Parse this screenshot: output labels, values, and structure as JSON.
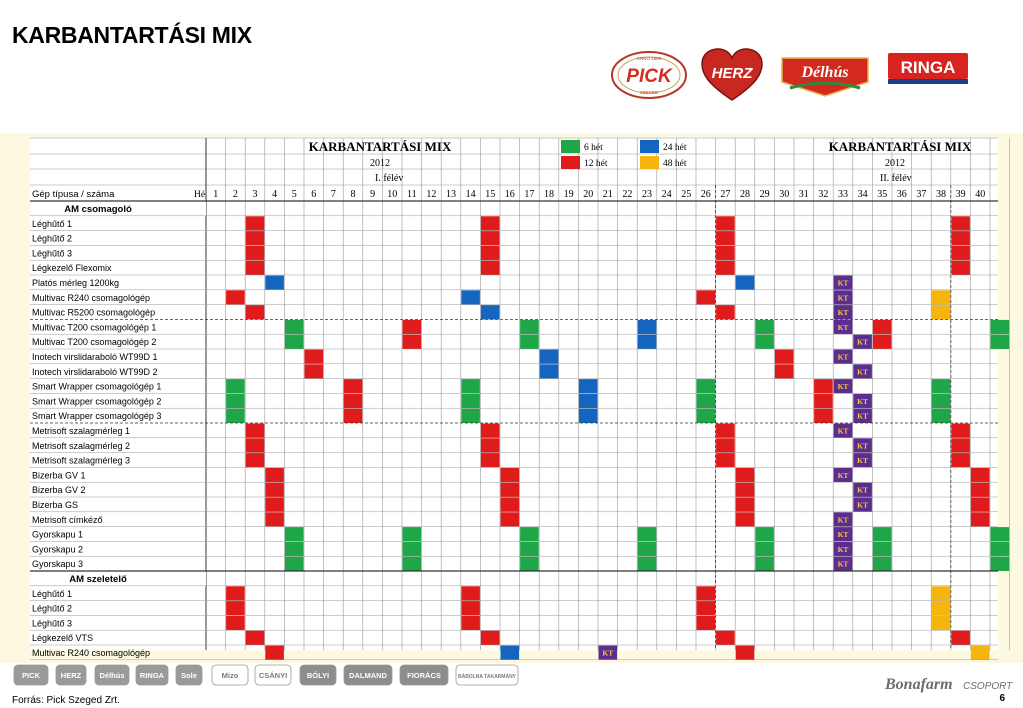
{
  "slide": {
    "title": "KARBANTARTÁSI MIX",
    "source": "Forrás: Pick Szeged Zrt.",
    "page_number": "6"
  },
  "brands": {
    "header": [
      "PICK",
      "HERZ",
      "Délhús",
      "RINGA"
    ],
    "pick_ring_top": "ANNO 1869",
    "pick_ring_bottom": "SZEGED",
    "footer": [
      "PICK",
      "HERZ",
      "Délhús",
      "RINGA",
      "Sole",
      "Mizo",
      "CSÁNYI",
      "BÓLYI",
      "DALMAND",
      "FIORÁCS",
      "BÁBOLNA TAKARMÁNY"
    ],
    "group": "Bonafarm",
    "group_suffix": "CSOPORT"
  },
  "sheet": {
    "title": "KARBANTARTÁSI MIX",
    "year": "2012",
    "half1": "I. félév",
    "half2": "II. félév",
    "header_machine": "Gép típusa / száma",
    "header_week": "Hé",
    "kt_label": "KT",
    "legend": [
      {
        "label": "6 hét",
        "color": "#1fa649"
      },
      {
        "label": "24 hét",
        "color": "#1565c0"
      },
      {
        "label": "12 hét",
        "color": "#e01b1b"
      },
      {
        "label": "48 hét",
        "color": "#f5b50d"
      }
    ],
    "colors": {
      "G": "#1fa649",
      "R": "#e01b1b",
      "B": "#1565c0",
      "Y": "#f5b50d",
      "K": "#5b2d8e"
    },
    "weeks": [
      1,
      2,
      3,
      4,
      5,
      6,
      7,
      8,
      9,
      10,
      11,
      12,
      13,
      14,
      15,
      16,
      17,
      18,
      19,
      20,
      21,
      22,
      23,
      24,
      25,
      26,
      27,
      28,
      29,
      30,
      31,
      32,
      33,
      34,
      35,
      36,
      37,
      38,
      39,
      40
    ],
    "rows": [
      {
        "label": "AM csomagoló",
        "section": true,
        "cells": {}
      },
      {
        "label": "Léghűtő 1",
        "cells": {
          "3": "R",
          "15": "R",
          "27": "R",
          "39": "R"
        }
      },
      {
        "label": "Léghűtő 2",
        "cells": {
          "3": "R",
          "15": "R",
          "27": "R",
          "39": "R"
        }
      },
      {
        "label": "Léghűtő 3",
        "cells": {
          "3": "R",
          "15": "R",
          "27": "R",
          "39": "R"
        }
      },
      {
        "label": "Légkezelő Flexomix",
        "cells": {
          "3": "R",
          "15": "R",
          "27": "R",
          "39": "R"
        }
      },
      {
        "label": "Platós mérleg 1200kg",
        "cells": {
          "4": "B",
          "28": "B",
          "33": "K"
        }
      },
      {
        "label": "Multivac R240 csomagológép",
        "cells": {
          "2": "R",
          "14": "B",
          "26": "R",
          "33": "K",
          "38": "Y"
        }
      },
      {
        "label": "Multivac R5200 csomagológép",
        "cells": {
          "3": "R",
          "15": "B",
          "27": "R",
          "33": "K",
          "38": "Y"
        }
      },
      {
        "label": "Multivac T200 csomagológép 1",
        "cells": {
          "5": "G",
          "11": "R",
          "17": "G",
          "23": "B",
          "29": "G",
          "33": "K",
          "35": "R",
          "41": "G"
        }
      },
      {
        "label": "Multivac T200 csomagológép 2",
        "cells": {
          "5": "G",
          "11": "R",
          "17": "G",
          "23": "B",
          "29": "G",
          "34": "K",
          "35": "R",
          "41": "G"
        }
      },
      {
        "label": "Inotech virslidaraboló WT99D 1",
        "cells": {
          "6": "R",
          "18": "B",
          "30": "R",
          "33": "K"
        }
      },
      {
        "label": "Inotech virslidaraboló WT99D 2",
        "cells": {
          "6": "R",
          "18": "B",
          "30": "R",
          "34": "K"
        }
      },
      {
        "label": "Smart Wrapper csomagológép 1",
        "cells": {
          "2": "G",
          "8": "R",
          "14": "G",
          "20": "B",
          "26": "G",
          "32": "R",
          "33": "K",
          "38": "G"
        }
      },
      {
        "label": "Smart Wrapper csomagológép 2",
        "cells": {
          "2": "G",
          "8": "R",
          "14": "G",
          "20": "B",
          "26": "G",
          "32": "R",
          "34": "K",
          "38": "G"
        }
      },
      {
        "label": "Smart Wrapper csomagológép 3",
        "cells": {
          "2": "G",
          "8": "R",
          "14": "G",
          "20": "B",
          "26": "G",
          "32": "R",
          "34": "K",
          "38": "G"
        }
      },
      {
        "label": "Metrisoft szalagmérleg 1",
        "cells": {
          "3": "R",
          "15": "R",
          "27": "R",
          "33": "K",
          "39": "R"
        }
      },
      {
        "label": "Metrisoft szalagmérleg 2",
        "cells": {
          "3": "R",
          "15": "R",
          "27": "R",
          "34": "K",
          "39": "R"
        }
      },
      {
        "label": "Metrisoft szalagmérleg 3",
        "cells": {
          "3": "R",
          "15": "R",
          "27": "R",
          "34": "K",
          "39": "R"
        }
      },
      {
        "label": "Bizerba GV 1",
        "cells": {
          "4": "R",
          "16": "R",
          "28": "R",
          "33": "K",
          "40": "R"
        }
      },
      {
        "label": "Bizerba GV 2",
        "cells": {
          "4": "R",
          "16": "R",
          "28": "R",
          "34": "K",
          "40": "R"
        }
      },
      {
        "label": "Bizerba GS",
        "cells": {
          "4": "R",
          "16": "R",
          "28": "R",
          "34": "K",
          "40": "R"
        }
      },
      {
        "label": "Metrisoft címkéző",
        "cells": {
          "4": "R",
          "16": "R",
          "28": "R",
          "33": "K",
          "40": "R"
        }
      },
      {
        "label": "Gyorskapu 1",
        "cells": {
          "5": "G",
          "11": "G",
          "17": "G",
          "23": "G",
          "29": "G",
          "33": "K",
          "35": "G",
          "41": "G"
        }
      },
      {
        "label": "Gyorskapu 2",
        "cells": {
          "5": "G",
          "11": "G",
          "17": "G",
          "23": "G",
          "29": "G",
          "33": "K",
          "35": "G",
          "41": "G"
        }
      },
      {
        "label": "Gyorskapu 3",
        "cells": {
          "5": "G",
          "11": "G",
          "17": "G",
          "23": "G",
          "29": "G",
          "33": "K",
          "35": "G",
          "41": "G"
        }
      },
      {
        "label": "AM szeletelő",
        "section": true,
        "cells": {}
      },
      {
        "label": "Léghűtő 1",
        "cells": {
          "2": "R",
          "14": "R",
          "26": "R",
          "38": "Y"
        }
      },
      {
        "label": "Léghűtő 2",
        "cells": {
          "2": "R",
          "14": "R",
          "26": "R",
          "38": "Y"
        }
      },
      {
        "label": "Léghűtő 3",
        "cells": {
          "2": "R",
          "14": "R",
          "26": "R",
          "38": "Y"
        }
      },
      {
        "label": "Légkezelő VTS",
        "cells": {
          "3": "R",
          "15": "R",
          "27": "R",
          "39": "R"
        }
      },
      {
        "label": "Multivac R240 csomagológép",
        "cells": {
          "4": "R",
          "16": "B",
          "21": "K",
          "28": "R",
          "40": "Y"
        }
      }
    ]
  }
}
